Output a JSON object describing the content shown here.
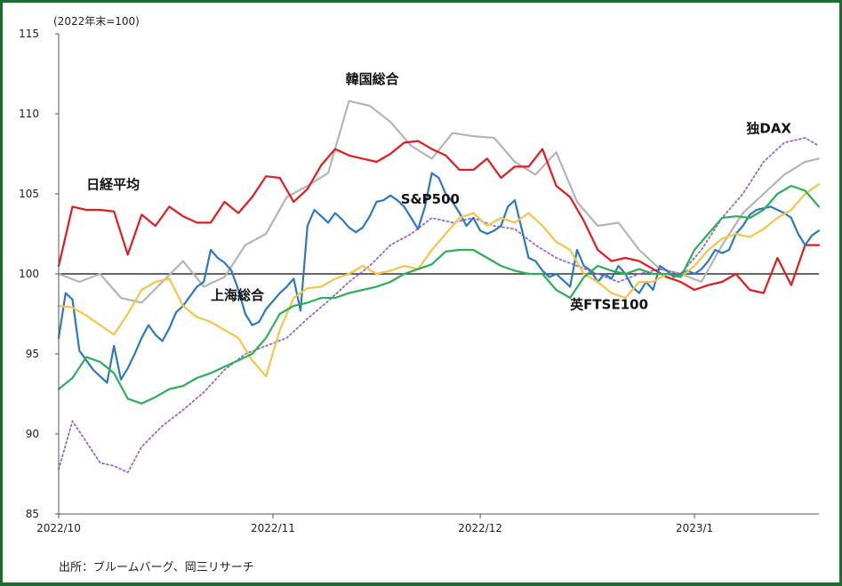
{
  "chart_data": {
    "type": "line",
    "unit_label": "(2022年末=100)",
    "source": "出所：ブルームバーグ、岡三リサーチ",
    "ylim": [
      85,
      115
    ],
    "yticks": [
      85,
      90,
      95,
      100,
      105,
      110,
      115
    ],
    "xlim": [
      0,
      110
    ],
    "xticks": [
      {
        "label": "2022/10",
        "x": 0
      },
      {
        "label": "2022/11",
        "x": 31
      },
      {
        "label": "2022/12",
        "x": 61
      },
      {
        "label": "2023/1",
        "x": 92
      }
    ],
    "baseline": 100,
    "series": [
      {
        "name": "韓国総合",
        "color": "#b4b4b4",
        "dashed": false,
        "x": [
          0,
          3,
          6,
          9,
          12,
          15,
          18,
          21,
          24,
          27,
          30,
          33,
          36,
          39,
          42,
          45,
          48,
          51,
          54,
          57,
          60,
          63,
          66,
          69,
          72,
          75,
          78,
          81,
          84,
          87,
          90,
          93,
          96,
          99,
          102,
          105,
          108,
          110
        ],
        "y": [
          100,
          99.5,
          100,
          98.5,
          98.2,
          99.5,
          100.8,
          99.2,
          99.8,
          101.8,
          102.5,
          104.8,
          105.5,
          106.3,
          110.8,
          110.5,
          109.5,
          108.0,
          107.2,
          108.8,
          108.6,
          108.5,
          107.0,
          106.2,
          107.6,
          104.5,
          103.0,
          103.2,
          101.5,
          100.3,
          100.0,
          99.5,
          101.8,
          103.8,
          105.0,
          106.2,
          107.0,
          107.2
        ]
      },
      {
        "name": "独DAX",
        "color": "#9966cc",
        "dashed": true,
        "x": [
          0,
          2,
          4,
          6,
          8,
          10,
          12,
          15,
          18,
          21,
          24,
          27,
          30,
          33,
          36,
          39,
          42,
          45,
          48,
          51,
          54,
          57,
          60,
          63,
          66,
          69,
          72,
          75,
          78,
          81,
          84,
          87,
          90,
          93,
          96,
          99,
          102,
          105,
          108,
          110
        ],
        "y": [
          87.8,
          90.8,
          89.5,
          88.2,
          88.0,
          87.6,
          89.2,
          90.5,
          91.5,
          92.6,
          94.0,
          95.0,
          95.5,
          96.0,
          97.2,
          98.3,
          99.5,
          100.5,
          101.8,
          102.5,
          103.5,
          103.2,
          103.5,
          103.0,
          102.8,
          101.8,
          101.0,
          100.5,
          100.0,
          99.5,
          100.0,
          100.3,
          100.0,
          101.5,
          103.5,
          105.0,
          107.0,
          108.2,
          108.5,
          108.0
        ]
      },
      {
        "name": "日経平均",
        "color": "#e41a1c",
        "dashed": false,
        "x": [
          0,
          2,
          4,
          6,
          8,
          10,
          12,
          14,
          16,
          18,
          20,
          22,
          24,
          26,
          28,
          30,
          32,
          34,
          36,
          38,
          40,
          42,
          44,
          46,
          48,
          50,
          52,
          54,
          56,
          58,
          60,
          62,
          64,
          66,
          68,
          70,
          72,
          74,
          76,
          78,
          80,
          82,
          84,
          86,
          88,
          90,
          92,
          94,
          96,
          98,
          100,
          102,
          104,
          106,
          108,
          110
        ],
        "y": [
          100.5,
          104.2,
          104.0,
          104.0,
          103.9,
          101.2,
          103.7,
          103.0,
          104.2,
          103.6,
          103.2,
          103.2,
          104.5,
          103.8,
          104.8,
          106.1,
          106.0,
          104.5,
          105.3,
          106.8,
          107.8,
          107.4,
          107.2,
          107.0,
          107.5,
          108.2,
          108.3,
          107.8,
          107.4,
          106.5,
          106.5,
          107.2,
          106.0,
          106.7,
          106.7,
          107.8,
          105.5,
          104.8,
          103.3,
          101.5,
          100.8,
          101.0,
          100.8,
          100.3,
          99.8,
          99.5,
          99.0,
          99.3,
          99.5,
          100.0,
          99.0,
          98.8,
          101.0,
          99.3,
          101.8,
          101.8
        ]
      },
      {
        "name": "S&P500",
        "color": "#2b79c2",
        "dashed": false,
        "x": [
          0,
          1,
          2,
          3,
          4,
          5,
          6,
          7,
          8,
          9,
          10,
          11,
          12,
          13,
          14,
          15,
          16,
          17,
          18,
          19,
          20,
          21,
          22,
          23,
          24,
          25,
          26,
          27,
          28,
          29,
          30,
          31,
          32,
          33,
          34,
          35,
          36,
          37,
          38,
          39,
          40,
          41,
          42,
          43,
          44,
          45,
          46,
          47,
          48,
          49,
          50,
          51,
          52,
          53,
          54,
          55,
          56,
          57,
          58,
          59,
          60,
          61,
          62,
          63,
          64,
          65,
          66,
          67,
          68,
          69,
          70,
          71,
          72,
          73,
          74,
          75,
          76,
          77,
          78,
          79,
          80,
          81,
          82,
          83,
          84,
          85,
          86,
          87,
          88,
          89,
          90,
          91,
          92,
          93,
          94,
          95,
          96,
          97,
          98,
          99,
          100,
          101,
          102,
          103,
          104,
          105,
          106,
          107,
          108,
          109,
          110
        ],
        "y": [
          96,
          98.8,
          98.4,
          95.2,
          94.6,
          94.0,
          93.6,
          93.2,
          95.5,
          93.4,
          94.1,
          95.0,
          96.0,
          96.8,
          96.2,
          95.8,
          96.6,
          97.6,
          98.0,
          98.6,
          99.2,
          99.5,
          101.5,
          101.0,
          100.7,
          100.2,
          99.0,
          97.5,
          96.8,
          97.0,
          97.8,
          98.3,
          98.8,
          99.2,
          99.7,
          97.7,
          103.0,
          104.0,
          103.6,
          103.2,
          103.8,
          103.4,
          102.9,
          102.6,
          102.9,
          103.6,
          104.5,
          104.6,
          104.9,
          104.6,
          104.2,
          103.5,
          102.8,
          104.2,
          106.3,
          106.0,
          105.0,
          104.5,
          103.8,
          103.0,
          103.5,
          102.7,
          102.5,
          102.7,
          103.0,
          104.2,
          104.6,
          102.8,
          101.0,
          100.8,
          100.2,
          99.8,
          100.0,
          99.6,
          99.2,
          101.5,
          100.5,
          100.2,
          99.5,
          100.0,
          99.7,
          100.5,
          100.0,
          99.2,
          98.8,
          99.5,
          99.0,
          100.5,
          100.2,
          99.8,
          100.0,
          100.2,
          100.0,
          100.3,
          100.8,
          101.5,
          101.3,
          101.5,
          102.5,
          103.0,
          103.7,
          104.0,
          104.1,
          104.2,
          104.0,
          103.8,
          103.5,
          102.5,
          101.8,
          102.4,
          102.7
        ]
      },
      {
        "name": "上海総合",
        "color": "#f5c54a",
        "dashed": false,
        "x": [
          0,
          2,
          4,
          6,
          8,
          10,
          12,
          14,
          16,
          18,
          20,
          22,
          24,
          26,
          28,
          30,
          32,
          34,
          36,
          38,
          40,
          42,
          44,
          46,
          48,
          50,
          52,
          54,
          56,
          58,
          60,
          62,
          64,
          66,
          68,
          70,
          72,
          74,
          76,
          78,
          80,
          82,
          84,
          86,
          88,
          90,
          92,
          94,
          96,
          98,
          100,
          102,
          104,
          106,
          108,
          110
        ],
        "y": [
          98.0,
          97.9,
          97.4,
          96.8,
          96.2,
          97.5,
          99.0,
          99.5,
          99.7,
          98.0,
          97.3,
          97.0,
          96.5,
          96.0,
          94.6,
          93.6,
          96.5,
          98.5,
          99.1,
          99.2,
          99.7,
          100.0,
          100.5,
          100.0,
          100.2,
          100.5,
          100.3,
          101.5,
          102.5,
          103.5,
          103.8,
          103.0,
          103.5,
          103.2,
          103.8,
          103.0,
          102.0,
          101.5,
          100.0,
          99.5,
          98.8,
          98.5,
          99.5,
          99.5,
          100.0,
          99.8,
          100.5,
          101.5,
          102.2,
          102.5,
          102.3,
          102.8,
          103.5,
          104.0,
          105.0,
          105.6
        ]
      },
      {
        "name": "英FTSE100",
        "color": "#2eae5a",
        "dashed": false,
        "x": [
          0,
          2,
          4,
          6,
          8,
          10,
          12,
          14,
          16,
          18,
          20,
          22,
          24,
          26,
          28,
          30,
          32,
          34,
          36,
          38,
          40,
          42,
          44,
          46,
          48,
          50,
          52,
          54,
          56,
          58,
          60,
          62,
          64,
          66,
          68,
          70,
          72,
          74,
          76,
          78,
          80,
          82,
          84,
          86,
          88,
          90,
          92,
          94,
          96,
          98,
          100,
          102,
          104,
          106,
          108,
          110
        ],
        "y": [
          92.8,
          93.5,
          94.8,
          94.5,
          93.8,
          92.2,
          91.9,
          92.3,
          92.8,
          93.0,
          93.5,
          93.8,
          94.2,
          94.6,
          95.0,
          96.0,
          97.5,
          98.0,
          98.2,
          98.5,
          98.5,
          98.8,
          99.0,
          99.2,
          99.5,
          100.0,
          100.3,
          100.6,
          101.4,
          101.5,
          101.5,
          101.0,
          100.5,
          100.2,
          100.0,
          100.0,
          99.0,
          98.5,
          99.8,
          100.5,
          100.2,
          100.0,
          100.3,
          100.0,
          100.0,
          99.8,
          101.5,
          102.5,
          103.5,
          103.6,
          103.5,
          104.0,
          105.0,
          105.5,
          105.2,
          104.2
        ]
      }
    ],
    "labels": [
      {
        "text": "日経平均",
        "x": 4,
        "y": 105.3
      },
      {
        "text": "韓国総合",
        "x": 41.5,
        "y": 111.9
      },
      {
        "text": "S&P500",
        "x": 49.5,
        "y": 104.4
      },
      {
        "text": "独DAX",
        "x": 99.5,
        "y": 108.8
      },
      {
        "text": "上海総合",
        "x": 22,
        "y": 98.4
      },
      {
        "text": "英FTSE100",
        "x": 74,
        "y": 97.8
      }
    ]
  }
}
